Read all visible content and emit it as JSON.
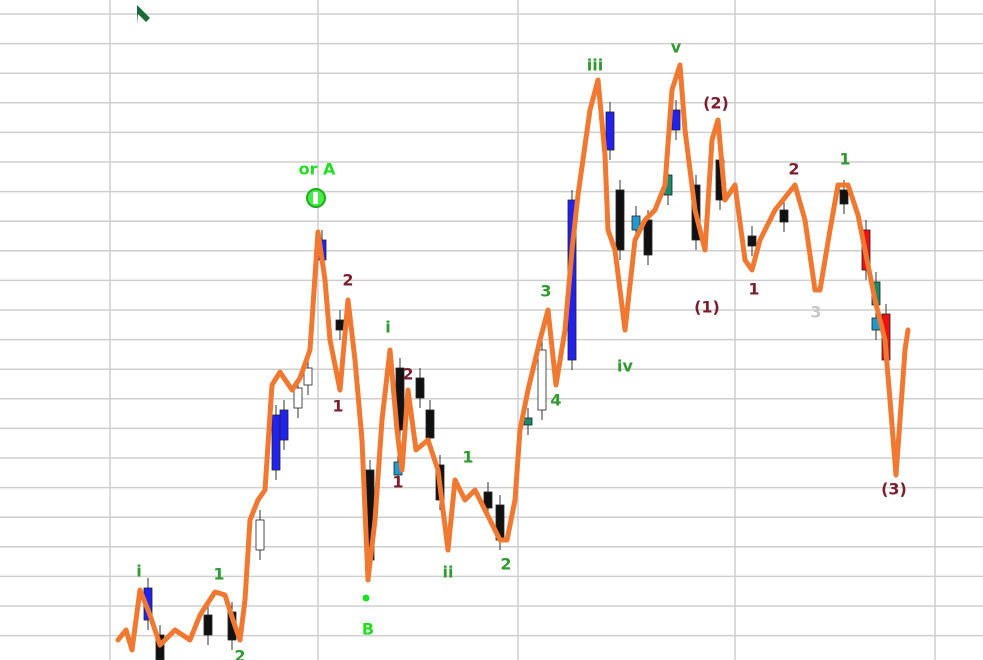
{
  "labels": [
    "i",
    "1",
    "2",
    "or A",
    "2",
    "1",
    "i",
    "2",
    "1",
    "1",
    "ii",
    "2",
    "3",
    "4",
    "B",
    "iii",
    "v",
    "(2)",
    "(1)",
    "iv",
    "2",
    "1",
    "3",
    "1",
    "(3)"
  ]
}
